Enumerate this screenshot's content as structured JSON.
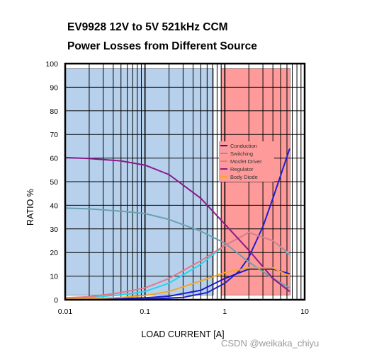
{
  "chart_data": {
    "type": "line",
    "title": "EV9928 12V to 5V 521kHz CCM",
    "subtitle": "Power Losses from Different Source",
    "xlabel": "LOAD CURRENT [A]",
    "ylabel": "RATIO %",
    "xscale": "log",
    "xlim": [
      0.01,
      10
    ],
    "ylim": [
      0,
      100
    ],
    "xticks": [
      "0.01",
      "0.1",
      "1",
      "10"
    ],
    "yticks": [
      "0",
      "10",
      "20",
      "30",
      "40",
      "50",
      "60",
      "70",
      "80",
      "90",
      "100"
    ],
    "regions": [
      {
        "x": [
          0.01,
          0.72
        ],
        "y": [
          2,
          98
        ],
        "color": "#b7d1ec"
      },
      {
        "x": [
          0.9,
          6.6
        ],
        "y": [
          2,
          98
        ],
        "color": "#ff9a9a"
      }
    ],
    "series": [
      {
        "name": "Conduction",
        "color": "#1a1acc",
        "x": [
          0.01,
          0.02,
          0.05,
          0.1,
          0.2,
          0.5,
          1,
          2,
          4,
          6.5
        ],
        "y": [
          0.2,
          0.3,
          0.5,
          0.8,
          1.5,
          4,
          9,
          13,
          13,
          11
        ]
      },
      {
        "name": "Switching",
        "color": "#6aa0b4",
        "x": [
          0.01,
          0.02,
          0.05,
          0.1,
          0.2,
          0.5,
          1,
          2,
          4,
          6.5
        ],
        "y": [
          38.8,
          38.5,
          37.5,
          36.5,
          34,
          29,
          24,
          16,
          9,
          5
        ]
      },
      {
        "name": "Mosfet Driver",
        "color": "#e07a8a",
        "x": [
          0.01,
          0.02,
          0.05,
          0.1,
          0.2,
          0.5,
          1,
          2,
          4,
          6.5
        ],
        "y": [
          0.8,
          1.3,
          3,
          5,
          9,
          16.5,
          23,
          28.5,
          25,
          19.5
        ]
      },
      {
        "name": "Regulator",
        "color": "#8b1a8b",
        "x": [
          0.01,
          0.02,
          0.05,
          0.1,
          0.2,
          0.5,
          1,
          2,
          4,
          6.5
        ],
        "y": [
          60.2,
          59.8,
          58.8,
          57,
          53,
          43,
          32,
          21,
          9,
          3.5
        ]
      },
      {
        "name": "Body Diode",
        "color": "#f5a623",
        "x": [
          0.01,
          0.02,
          0.05,
          0.1,
          0.2,
          0.5,
          1,
          2,
          4,
          6.5
        ],
        "y": [
          0.3,
          0.5,
          1,
          1.8,
          3.5,
          8,
          11.5,
          13.5,
          13.5,
          10
        ]
      }
    ],
    "extra_lines": [
      {
        "color": "#27d4f0",
        "x": [
          0.01,
          0.02,
          0.05,
          0.1,
          0.2,
          0.5,
          1,
          2,
          4,
          6.5
        ],
        "y": [
          0.5,
          1,
          2,
          3.5,
          7,
          15,
          23,
          28.5,
          25,
          19
        ]
      },
      {
        "color": "#1f1fd0",
        "x": [
          0.01,
          0.1,
          0.3,
          0.6,
          1,
          1.5,
          2,
          3,
          4,
          6.5
        ],
        "y": [
          0,
          0.2,
          1,
          3,
          7,
          12,
          18,
          31,
          43,
          64
        ]
      }
    ],
    "legend": {
      "position": "center-right"
    },
    "grid": true
  },
  "watermark": "CSDN @weikaka_chiyu"
}
